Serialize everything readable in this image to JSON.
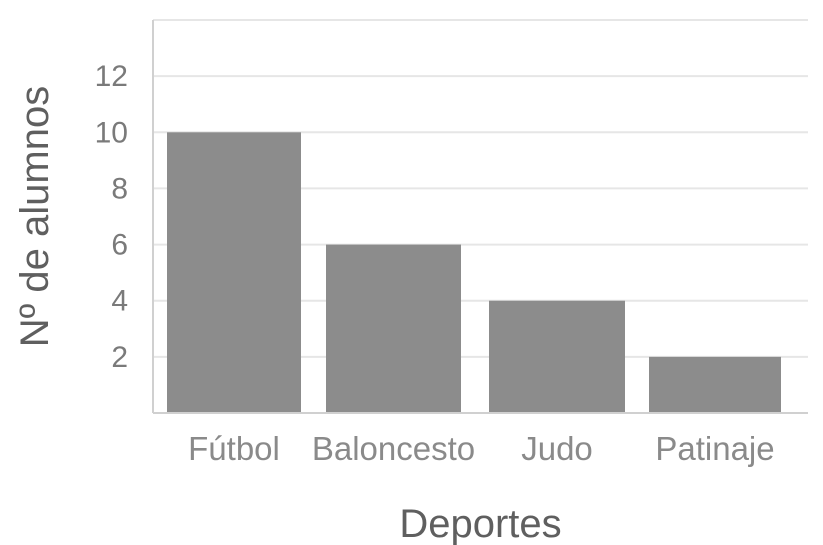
{
  "chart_data": {
    "type": "bar",
    "categories": [
      "Fútbol",
      "Baloncesto",
      "Judo",
      "Patinaje"
    ],
    "values": [
      10,
      6,
      4,
      2
    ],
    "title": "",
    "xlabel": "Deportes",
    "ylabel": "Nº de alumnos",
    "ylim": [
      0,
      14
    ],
    "yticks": [
      2,
      4,
      6,
      8,
      10,
      12
    ],
    "grid": true,
    "legend": "none",
    "bar_color": "#8c8c8c",
    "grid_color": "#e6e6e6",
    "axis_color": "#d0d0d0"
  }
}
